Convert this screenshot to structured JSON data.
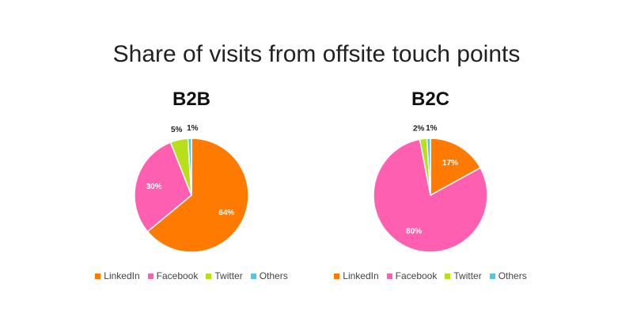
{
  "title": "Share of visits from offsite touch points",
  "chart_data": [
    {
      "type": "pie",
      "title": "B2B",
      "categories": [
        "LinkedIn",
        "Facebook",
        "Twitter",
        "Others"
      ],
      "values": [
        64,
        30,
        5,
        1
      ],
      "labels": [
        "64%",
        "30%",
        "5%",
        "1%"
      ],
      "colors": [
        "#FF7A00",
        "#FF5FB0",
        "#B8DF1A",
        "#4FC8E8"
      ],
      "legend": "bottom"
    },
    {
      "type": "pie",
      "title": "B2C",
      "categories": [
        "LinkedIn",
        "Facebook",
        "Twitter",
        "Others"
      ],
      "values": [
        17,
        80,
        2,
        1
      ],
      "labels": [
        "17%",
        "80%",
        "2%",
        "1%"
      ],
      "colors": [
        "#FF7A00",
        "#FF5FB0",
        "#B8DF1A",
        "#4FC8E8"
      ],
      "legend": "bottom"
    }
  ]
}
